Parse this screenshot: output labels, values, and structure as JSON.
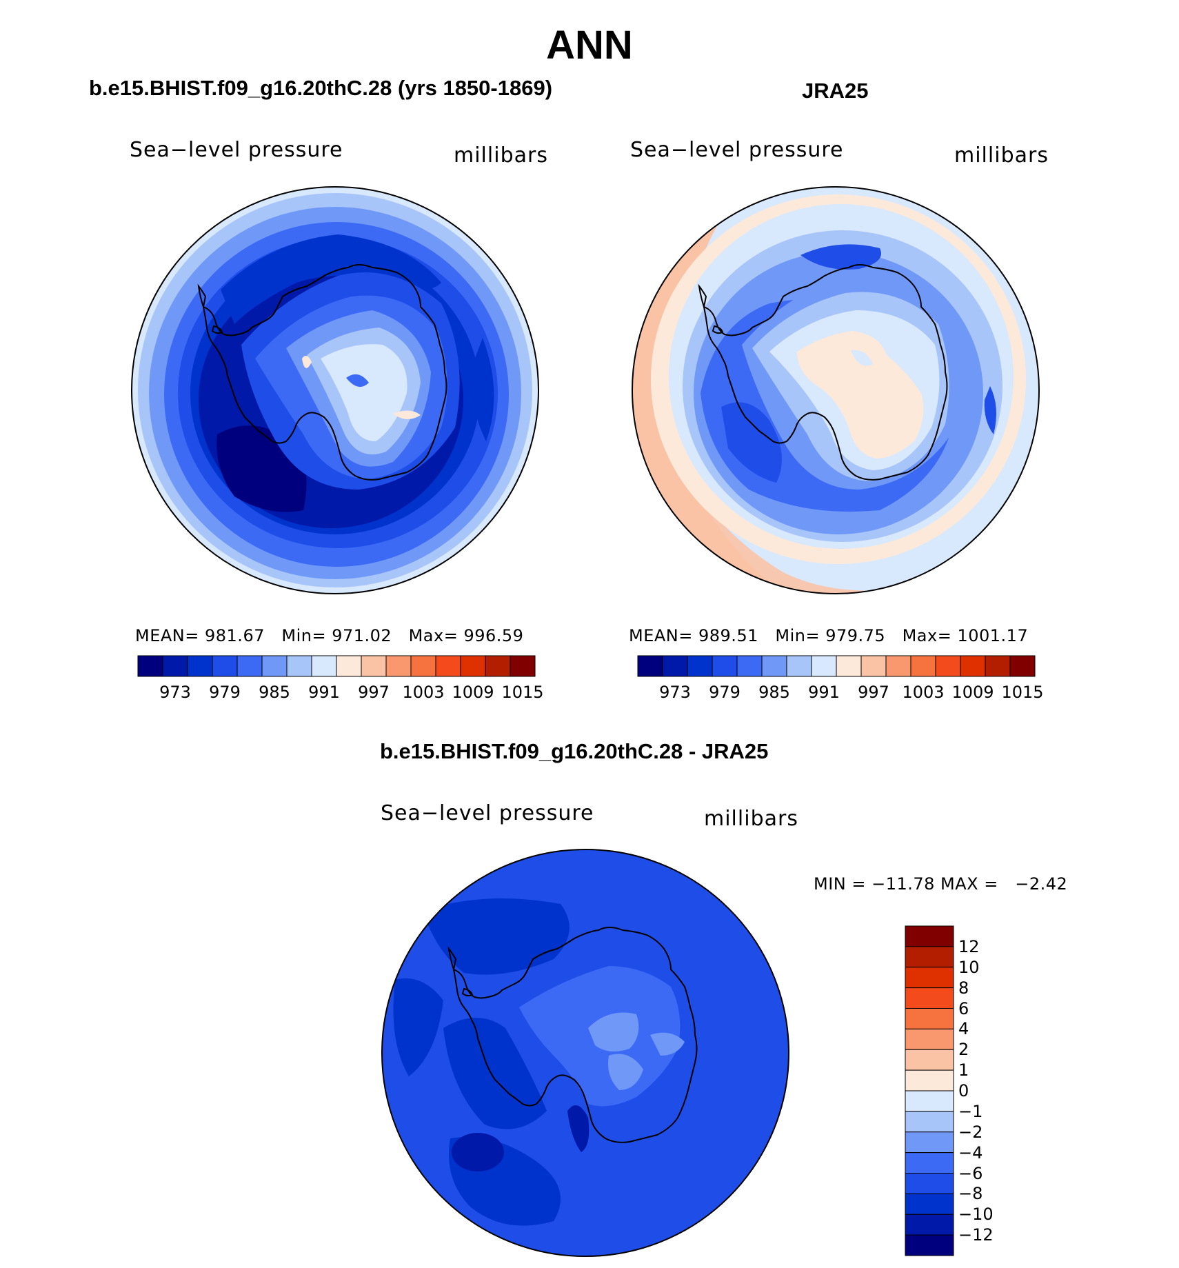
{
  "title": "ANN",
  "panels": [
    {
      "id": "model",
      "title": "b.e15.BHIST.f09_g16.20thC.28 (yrs 1850-1869)",
      "variable": "Sea−level pressure",
      "units": "millibars",
      "stats": {
        "mean_label": "MEAN=",
        "mean": "981.67",
        "min_label": "Min=",
        "min": "971.02",
        "max_label": "Max=",
        "max": "996.59"
      }
    },
    {
      "id": "obs",
      "title": "JRA25",
      "variable": "Sea−level pressure",
      "units": "millibars",
      "stats": {
        "mean_label": "MEAN=",
        "mean": "989.51",
        "min_label": "Min=",
        "min": "979.75",
        "max_label": "Max=",
        "max": "1001.17"
      }
    },
    {
      "id": "diff",
      "title": "b.e15.BHIST.f09_g16.20thC.28 - JRA25",
      "variable": "Sea−level pressure",
      "units": "millibars",
      "stats_text": "MIN = −11.78 MAX =   −2.42"
    }
  ],
  "colorbar_horizontal": {
    "colors": [
      "#00007f",
      "#0019a8",
      "#0033cc",
      "#1f4de8",
      "#3d6af5",
      "#7099f7",
      "#a8c5fa",
      "#d8e8fd",
      "#fde9da",
      "#fbc3a6",
      "#f9986e",
      "#f6733f",
      "#f34b1b",
      "#df3000",
      "#b41e00",
      "#800000"
    ],
    "ticks": [
      "973",
      "979",
      "985",
      "991",
      "997",
      "1003",
      "1009",
      "1015"
    ]
  },
  "colorbar_vertical": {
    "colors_top_to_bottom": [
      "#800000",
      "#b41e00",
      "#df3000",
      "#f34b1b",
      "#f6733f",
      "#f9986e",
      "#fbc3a6",
      "#fde9da",
      "#d8e8fd",
      "#a8c5fa",
      "#7099f7",
      "#3d6af5",
      "#1f4de8",
      "#0033cc",
      "#0019a8",
      "#00007f"
    ],
    "ticks_top_to_bottom": [
      "12",
      "10",
      "8",
      "6",
      "4",
      "2",
      "1",
      "0",
      "−1",
      "−2",
      "−4",
      "−6",
      "−8",
      "−10",
      "−12"
    ]
  }
}
